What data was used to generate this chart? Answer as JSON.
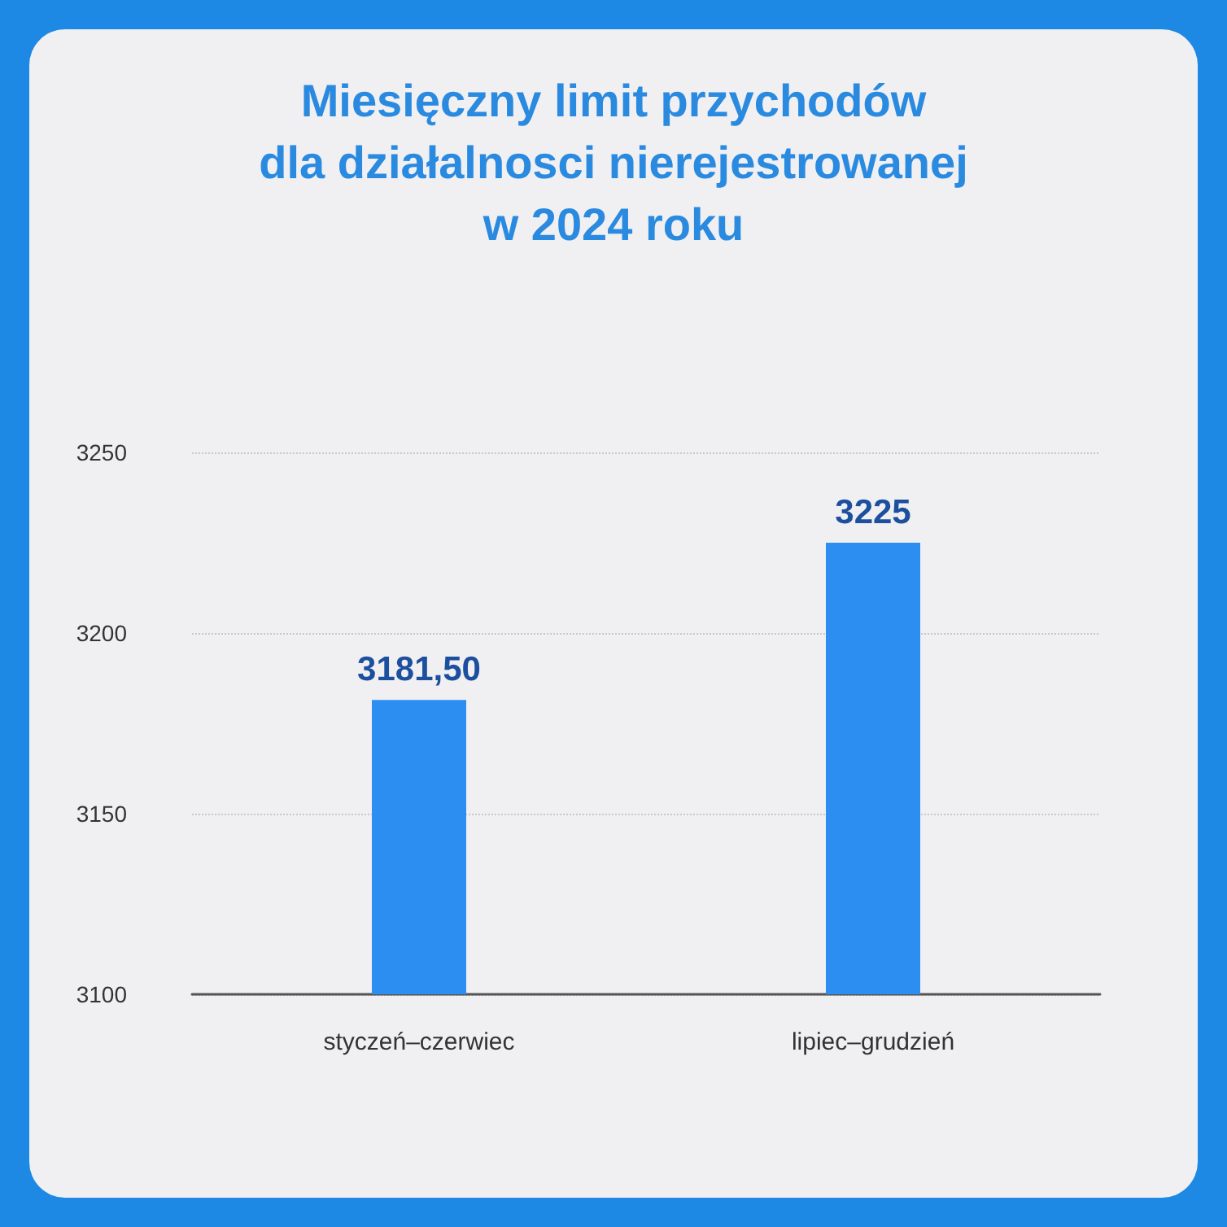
{
  "chart_data": {
    "type": "bar",
    "title": "Miesięczny limit przychodów\ndla działalnosci nierejestrowanej\nw 2024 roku",
    "categories": [
      "styczeń–czerwiec",
      "lipiec–grudzień"
    ],
    "values": [
      3181.5,
      3225
    ],
    "value_labels": [
      "3181,50",
      "3225"
    ],
    "color": "#2b8ef0",
    "ylim": [
      3100,
      3250
    ],
    "yticks": [
      3100,
      3150,
      3200,
      3250
    ],
    "grid": "y"
  }
}
